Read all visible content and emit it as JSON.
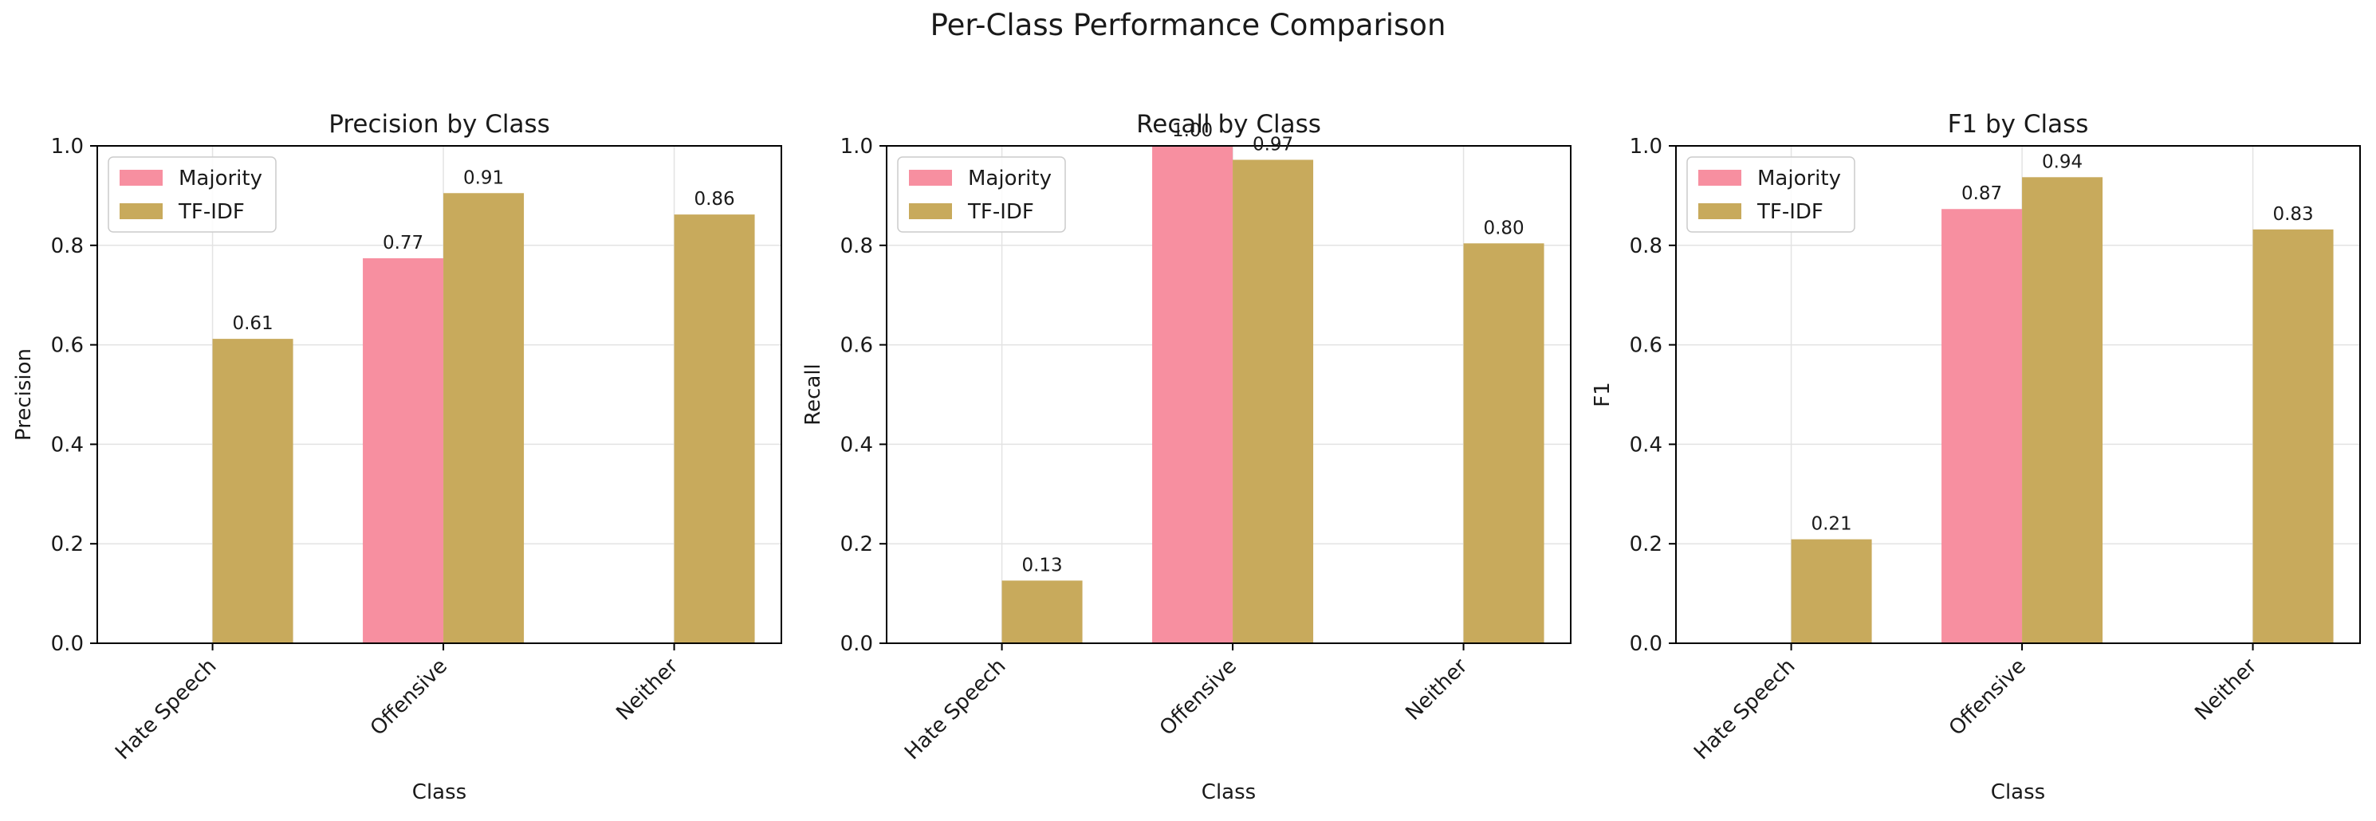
{
  "figure": {
    "title": "Per-Class Performance Comparison"
  },
  "colors": {
    "Majority": "#f78fa0",
    "TF-IDF": "#c8aa5c",
    "grid": "#e3e3e3",
    "axis": "#000000"
  },
  "chart_data": [
    {
      "type": "bar",
      "title": "Precision by Class",
      "xlabel": "Class",
      "ylabel": "Precision",
      "ylim": [
        0,
        1.0
      ],
      "yticks": [
        "0.0",
        "0.2",
        "0.4",
        "0.6",
        "0.8",
        "1.0"
      ],
      "categories": [
        "Hate Speech",
        "Offensive",
        "Neither"
      ],
      "series": [
        {
          "name": "Majority",
          "values": [
            0.0,
            0.774,
            0.0
          ],
          "labels": [
            "",
            "0.77",
            ""
          ]
        },
        {
          "name": "TF-IDF",
          "values": [
            0.612,
            0.905,
            0.862
          ],
          "labels": [
            "0.61",
            "0.91",
            "0.86"
          ]
        }
      ],
      "legend": "top-left",
      "grid": true
    },
    {
      "type": "bar",
      "title": "Recall by Class",
      "xlabel": "Class",
      "ylabel": "Recall",
      "ylim": [
        0,
        1.0
      ],
      "yticks": [
        "0.0",
        "0.2",
        "0.4",
        "0.6",
        "0.8",
        "1.0"
      ],
      "categories": [
        "Hate Speech",
        "Offensive",
        "Neither"
      ],
      "series": [
        {
          "name": "Majority",
          "values": [
            0.0,
            1.0,
            0.0
          ],
          "labels": [
            "",
            "1.00",
            ""
          ]
        },
        {
          "name": "TF-IDF",
          "values": [
            0.126,
            0.972,
            0.804
          ],
          "labels": [
            "0.13",
            "0.97",
            "0.80"
          ]
        }
      ],
      "legend": "top-left",
      "grid": true
    },
    {
      "type": "bar",
      "title": "F1 by Class",
      "xlabel": "Class",
      "ylabel": "F1",
      "ylim": [
        0,
        1.0
      ],
      "yticks": [
        "0.0",
        "0.2",
        "0.4",
        "0.6",
        "0.8",
        "1.0"
      ],
      "categories": [
        "Hate Speech",
        "Offensive",
        "Neither"
      ],
      "series": [
        {
          "name": "Majority",
          "values": [
            0.0,
            0.873,
            0.0
          ],
          "labels": [
            "",
            "0.87",
            ""
          ]
        },
        {
          "name": "TF-IDF",
          "values": [
            0.209,
            0.937,
            0.832
          ],
          "labels": [
            "0.21",
            "0.94",
            "0.83"
          ]
        }
      ],
      "legend": "top-left",
      "grid": true
    }
  ]
}
